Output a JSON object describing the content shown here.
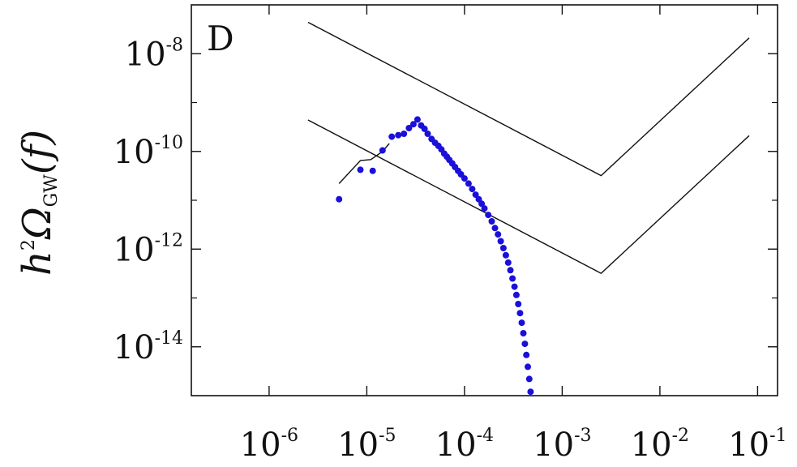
{
  "chart_data": {
    "type": "scatter",
    "panel_label": "D",
    "ylabel": {
      "main": "h",
      "sup": "2",
      "omega": "Ω",
      "sub": "GW",
      "arg": "(f)"
    },
    "xscale": "log",
    "yscale": "log",
    "xlim": [
      1.6e-07,
      0.16
    ],
    "ylim": [
      1e-15,
      1e-07
    ],
    "x_ticks": [
      {
        "value": 1e-06,
        "base": "10",
        "exp": "-6"
      },
      {
        "value": 1e-05,
        "base": "10",
        "exp": "-5"
      },
      {
        "value": 0.0001,
        "base": "10",
        "exp": "-4"
      },
      {
        "value": 0.001,
        "base": "10",
        "exp": "-3"
      },
      {
        "value": 0.01,
        "base": "10",
        "exp": "-2"
      },
      {
        "value": 0.1,
        "base": "10",
        "exp": "-1"
      }
    ],
    "y_ticks": [
      {
        "value": 1e-08,
        "base": "10",
        "exp": "-8"
      },
      {
        "value": 1e-10,
        "base": "10",
        "exp": "-10"
      },
      {
        "value": 1e-12,
        "base": "10",
        "exp": "-12"
      },
      {
        "value": 1e-14,
        "base": "10",
        "exp": "-14"
      }
    ],
    "grid": false,
    "colors": {
      "points": "#1a10d8",
      "lines": "#111111"
    },
    "series": [
      {
        "kind": "line",
        "points": [
          [
            2.5e-06,
            4.4e-08
          ],
          [
            0.0025,
            3.2e-11
          ],
          [
            0.082,
            2.1e-08
          ]
        ]
      },
      {
        "kind": "line",
        "points": [
          [
            2.5e-06,
            4.4e-10
          ],
          [
            0.0025,
            3.2e-13
          ],
          [
            0.082,
            2.1e-10
          ]
        ]
      },
      {
        "kind": "line",
        "points": [
          [
            5.2e-06,
            2.2e-11
          ],
          [
            8.6e-06,
            6.5e-11
          ],
          [
            1.1e-05,
            6.8e-11
          ],
          [
            1.45e-05,
            1e-10
          ],
          [
            1.7e-05,
            1.45e-10
          ]
        ]
      },
      {
        "kind": "scatter",
        "points": [
          [
            5.2e-06,
            1.05e-11
          ],
          [
            8.6e-06,
            4.2e-11
          ],
          [
            1.15e-05,
            4e-11
          ],
          [
            1.45e-05,
            1.05e-10
          ],
          [
            1.8e-05,
            2e-10
          ],
          [
            2.1e-05,
            2.15e-10
          ],
          [
            2.4e-05,
            2.3e-10
          ],
          [
            2.7e-05,
            3e-10
          ],
          [
            3e-05,
            3.6e-10
          ],
          [
            3.3e-05,
            4.5e-10
          ],
          [
            3.6e-05,
            3.4e-10
          ],
          [
            3.9e-05,
            2.9e-10
          ],
          [
            4.2e-05,
            2.3e-10
          ],
          [
            4.6e-05,
            1.8e-10
          ],
          [
            5e-05,
            1.5e-10
          ],
          [
            5.4e-05,
            1.3e-10
          ],
          [
            5.8e-05,
            1.1e-10
          ],
          [
            6.2e-05,
            9e-11
          ],
          [
            6.6e-05,
            7.8e-11
          ],
          [
            7e-05,
            6.7e-11
          ],
          [
            7.5e-05,
            5.7e-11
          ],
          [
            8e-05,
            4.8e-11
          ],
          [
            8.6e-05,
            4e-11
          ],
          [
            9.2e-05,
            3.4e-11
          ],
          [
            0.0001,
            2.8e-11
          ],
          [
            0.00011,
            2.2e-11
          ],
          [
            0.00012,
            1.7e-11
          ],
          [
            0.00013,
            1.3e-11
          ],
          [
            0.00014,
            1.05e-11
          ],
          [
            0.00015,
            8.5e-12
          ],
          [
            0.00016,
            6.8e-12
          ],
          [
            0.000175,
            5e-12
          ],
          [
            0.00019,
            3.7e-12
          ],
          [
            0.000205,
            2.7e-12
          ],
          [
            0.00022,
            2e-12
          ],
          [
            0.000235,
            1.45e-12
          ],
          [
            0.00025,
            1.05e-12
          ],
          [
            0.000265,
            7.5e-13
          ],
          [
            0.00028,
            5.3e-13
          ],
          [
            0.000295,
            3.7e-13
          ],
          [
            0.00031,
            2.5e-13
          ],
          [
            0.000325,
            1.7e-13
          ],
          [
            0.00034,
            1.15e-13
          ],
          [
            0.000355,
            7.5e-14
          ],
          [
            0.00037,
            4.9e-14
          ],
          [
            0.000385,
            3.1e-14
          ],
          [
            0.0004,
            1.9e-14
          ],
          [
            0.000415,
            1.15e-14
          ],
          [
            0.00043,
            6.8e-15
          ],
          [
            0.000445,
            3.9e-15
          ],
          [
            0.00046,
            2.2e-15
          ],
          [
            0.000475,
            1.2e-15
          ]
        ]
      }
    ]
  }
}
